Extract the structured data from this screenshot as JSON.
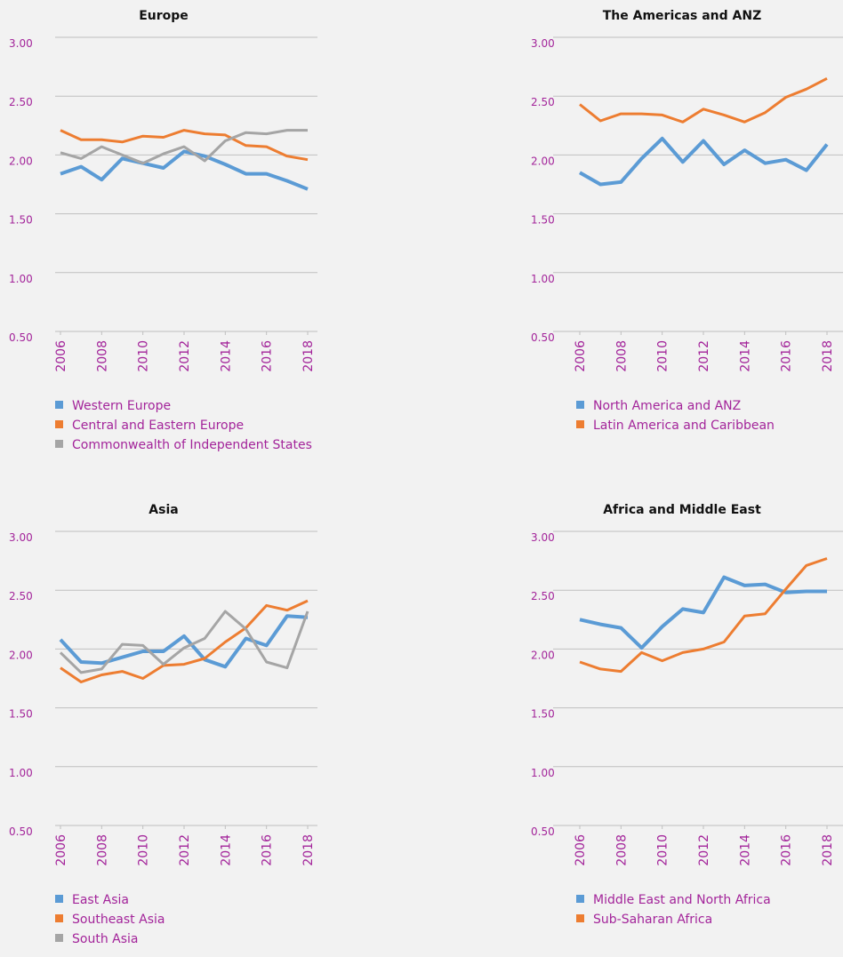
{
  "chart_data": [
    {
      "type": "line",
      "title": "Europe",
      "x": [
        2006,
        2007,
        2008,
        2009,
        2010,
        2011,
        2012,
        2013,
        2014,
        2015,
        2016,
        2017,
        2018
      ],
      "xlim": [
        2006,
        2018
      ],
      "xticks": [
        2006,
        2008,
        2010,
        2012,
        2014,
        2016,
        2018
      ],
      "ylim": [
        0.5,
        3
      ],
      "yticks": [
        {
          "value": 0.5,
          "label": "0.50"
        },
        {
          "value": 1,
          "label": "1.00"
        },
        {
          "value": 1.5,
          "label": "1.50"
        },
        {
          "value": 2,
          "label": "2.00"
        },
        {
          "value": 2.5,
          "label": "2.50"
        },
        {
          "value": 3,
          "label": "3.00"
        }
      ],
      "grid": true,
      "series": [
        {
          "name": "Western Europe",
          "color": "#5b9bd5",
          "values": [
            1.84,
            1.9,
            1.79,
            1.97,
            1.93,
            1.89,
            2.03,
            1.99,
            1.92,
            1.84,
            1.84,
            1.78,
            1.71
          ]
        },
        {
          "name": "Central and Eastern Europe",
          "color": "#ed7d31",
          "values": [
            2.21,
            2.13,
            2.13,
            2.11,
            2.16,
            2.15,
            2.21,
            2.18,
            2.17,
            2.08,
            2.07,
            1.99,
            1.96
          ]
        },
        {
          "name": "Commonwealth of Independent States",
          "color": "#a5a5a5",
          "values": [
            2.02,
            1.97,
            2.07,
            2.0,
            1.93,
            2.01,
            2.07,
            1.95,
            2.12,
            2.19,
            2.18,
            2.21,
            2.21
          ]
        }
      ]
    },
    {
      "type": "line",
      "title": "The Americas and ANZ",
      "x": [
        2006,
        2007,
        2008,
        2009,
        2010,
        2011,
        2012,
        2013,
        2014,
        2015,
        2016,
        2017,
        2018
      ],
      "xlim": [
        2006,
        2018
      ],
      "xticks": [
        2006,
        2008,
        2010,
        2012,
        2014,
        2016,
        2018
      ],
      "ylim": [
        0.5,
        3
      ],
      "yticks": [
        {
          "value": 0.5,
          "label": "0.50"
        },
        {
          "value": 1,
          "label": "1.00"
        },
        {
          "value": 1.5,
          "label": "1.50"
        },
        {
          "value": 2,
          "label": "2.00"
        },
        {
          "value": 2.5,
          "label": "2.50"
        },
        {
          "value": 3,
          "label": "3.00"
        }
      ],
      "grid": true,
      "series": [
        {
          "name": "North America and ANZ",
          "color": "#5b9bd5",
          "values": [
            1.85,
            1.75,
            1.77,
            1.97,
            2.14,
            1.94,
            2.12,
            1.92,
            2.04,
            1.93,
            1.96,
            1.87,
            2.09
          ]
        },
        {
          "name": "Latin America and Caribbean",
          "color": "#ed7d31",
          "values": [
            2.43,
            2.29,
            2.35,
            2.35,
            2.34,
            2.28,
            2.39,
            2.34,
            2.28,
            2.36,
            2.49,
            2.56,
            2.65
          ]
        }
      ]
    },
    {
      "type": "line",
      "title": "Asia",
      "x": [
        2006,
        2007,
        2008,
        2009,
        2010,
        2011,
        2012,
        2013,
        2014,
        2015,
        2016,
        2017,
        2018
      ],
      "xlim": [
        2006,
        2018
      ],
      "xticks": [
        2006,
        2008,
        2010,
        2012,
        2014,
        2016,
        2018
      ],
      "ylim": [
        0.5,
        3
      ],
      "yticks": [
        {
          "value": 0.5,
          "label": "0.50"
        },
        {
          "value": 1,
          "label": "1.00"
        },
        {
          "value": 1.5,
          "label": "1.50"
        },
        {
          "value": 2,
          "label": "2.00"
        },
        {
          "value": 2.5,
          "label": "2.50"
        },
        {
          "value": 3,
          "label": "3.00"
        }
      ],
      "grid": true,
      "series": [
        {
          "name": "East Asia",
          "color": "#5b9bd5",
          "values": [
            2.08,
            1.89,
            1.88,
            1.93,
            1.98,
            1.98,
            2.11,
            1.91,
            1.85,
            2.09,
            2.03,
            2.28,
            2.27
          ]
        },
        {
          "name": "Southeast Asia",
          "color": "#ed7d31",
          "values": [
            1.84,
            1.72,
            1.78,
            1.81,
            1.75,
            1.86,
            1.87,
            1.92,
            2.06,
            2.18,
            2.37,
            2.33,
            2.41
          ]
        },
        {
          "name": "South Asia",
          "color": "#a5a5a5",
          "values": [
            1.97,
            1.8,
            1.83,
            2.04,
            2.03,
            1.87,
            2.01,
            2.09,
            2.32,
            2.17,
            1.89,
            1.84,
            2.32
          ]
        }
      ]
    },
    {
      "type": "line",
      "title": "Africa and Middle East",
      "x": [
        2006,
        2007,
        2008,
        2009,
        2010,
        2011,
        2012,
        2013,
        2014,
        2015,
        2016,
        2017,
        2018
      ],
      "xlim": [
        2006,
        2018
      ],
      "xticks": [
        2006,
        2008,
        2010,
        2012,
        2014,
        2016,
        2018
      ],
      "ylim": [
        0.5,
        3
      ],
      "yticks": [
        {
          "value": 0.5,
          "label": "0.50"
        },
        {
          "value": 1,
          "label": "1.00"
        },
        {
          "value": 1.5,
          "label": "1.50"
        },
        {
          "value": 2,
          "label": "2.00"
        },
        {
          "value": 2.5,
          "label": "2.50"
        },
        {
          "value": 3,
          "label": "3.00"
        }
      ],
      "grid": true,
      "series": [
        {
          "name": "Middle East and North Africa",
          "color": "#5b9bd5",
          "values": [
            2.25,
            2.21,
            2.18,
            2.01,
            2.19,
            2.34,
            2.31,
            2.61,
            2.54,
            2.55,
            2.48,
            2.49,
            2.49
          ]
        },
        {
          "name": "Sub-Saharan Africa",
          "color": "#ed7d31",
          "values": [
            1.89,
            1.83,
            1.81,
            1.97,
            1.9,
            1.97,
            2.0,
            2.06,
            2.28,
            2.3,
            2.51,
            2.71,
            2.77
          ]
        }
      ]
    }
  ]
}
